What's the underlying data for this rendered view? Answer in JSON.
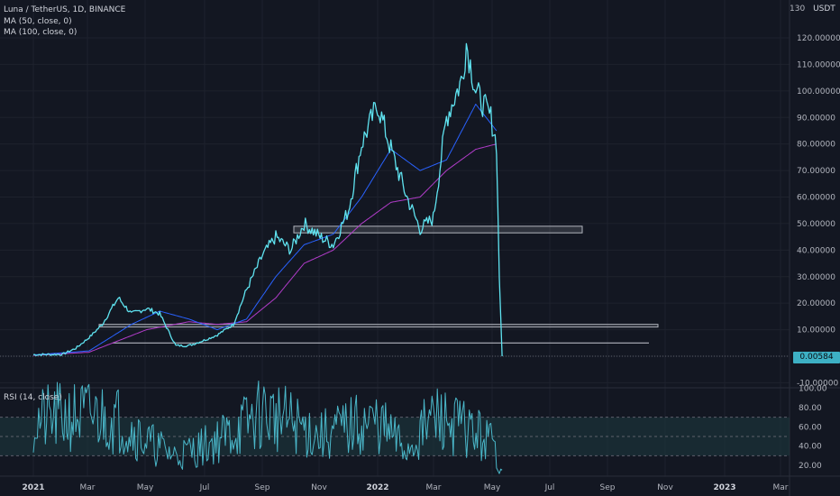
{
  "header": {
    "title": "Luna / TetherUS, 1D, BINANCE",
    "ma50": "MA (50, close, 0)",
    "ma100": "MA (100, close, 0)",
    "currency": "USDT"
  },
  "rsi": {
    "label": "RSI (14, close)",
    "ticks": [
      "100.00",
      "80.00",
      "60.00",
      "40.00",
      "20.00"
    ]
  },
  "price_axis": {
    "ticks": [
      "120.00000",
      "110.00000",
      "100.00000",
      "90.00000",
      "80.00000",
      "70.00000",
      "60.00000",
      "50.00000",
      "40.00000",
      "30.00000",
      "20.00000",
      "10.00000",
      "-10.00000"
    ],
    "top_partial": "130",
    "last_price": "0.00584"
  },
  "time_axis": {
    "labels": [
      "2021",
      "Mar",
      "May",
      "Jul",
      "Sep",
      "Nov",
      "2022",
      "Mar",
      "May",
      "Jul",
      "Sep",
      "Nov",
      "2023",
      "Mar"
    ]
  },
  "colors": {
    "background": "#131722",
    "price_line": "#5fe3f0",
    "ma50": "#2962ff",
    "ma100": "#b13cc9",
    "rsi_line": "#4ab7c9",
    "rsi_band": "#1d3a3f",
    "zone": "#b2b5be"
  },
  "chart_data": [
    {
      "type": "line",
      "title": "Luna / TetherUS, 1D, BINANCE",
      "ylabel": "USDT",
      "ylim": [
        -10,
        130
      ],
      "series": [
        {
          "name": "Luna / TetherUS",
          "x": [
            "2021-01-01",
            "2021-02-01",
            "2021-02-15",
            "2021-03-01",
            "2021-03-15",
            "2021-04-01",
            "2021-04-15",
            "2021-05-01",
            "2021-05-15",
            "2021-06-01",
            "2021-06-15",
            "2021-07-01",
            "2021-07-15",
            "2021-08-01",
            "2021-08-15",
            "2021-09-01",
            "2021-09-15",
            "2021-10-01",
            "2021-10-15",
            "2021-11-01",
            "2021-11-15",
            "2021-12-01",
            "2021-12-15",
            "2022-01-01",
            "2022-01-15",
            "2022-02-01",
            "2022-02-15",
            "2022-03-01",
            "2022-03-15",
            "2022-04-01",
            "2022-04-05",
            "2022-04-15",
            "2022-05-01",
            "2022-05-07",
            "2022-05-10",
            "2022-05-13"
          ],
          "values": [
            0.6,
            0.7,
            3,
            7,
            12,
            22,
            16,
            18,
            16,
            4,
            4,
            6,
            8,
            12,
            25,
            38,
            45,
            40,
            50,
            45,
            42,
            55,
            80,
            95,
            78,
            60,
            48,
            52,
            90,
            105,
            118,
            100,
            90,
            80,
            30,
            0.006
          ]
        },
        {
          "name": "MA (50, close, 0)",
          "x": [
            "2021-01-01",
            "2021-03-01",
            "2021-04-15",
            "2021-05-15",
            "2021-06-15",
            "2021-07-15",
            "2021-08-15",
            "2021-09-15",
            "2021-10-15",
            "2021-11-15",
            "2021-12-15",
            "2022-01-15",
            "2022-02-15",
            "2022-03-15",
            "2022-04-15",
            "2022-05-07"
          ],
          "values": [
            0.5,
            2,
            12,
            17,
            14,
            10,
            14,
            30,
            42,
            46,
            60,
            78,
            70,
            74,
            95,
            85
          ]
        },
        {
          "name": "MA (100, close, 0)",
          "x": [
            "2021-01-01",
            "2021-03-01",
            "2021-05-01",
            "2021-06-15",
            "2021-07-15",
            "2021-08-15",
            "2021-09-15",
            "2021-10-15",
            "2021-11-15",
            "2021-12-15",
            "2022-01-15",
            "2022-02-15",
            "2022-03-15",
            "2022-04-15",
            "2022-05-07"
          ],
          "values": [
            0.3,
            1.5,
            10,
            13,
            12,
            13,
            22,
            35,
            40,
            50,
            58,
            60,
            70,
            78,
            80
          ]
        }
      ],
      "annotations": [
        "support zone 46.5-49",
        "support zone 11-12",
        "line 5"
      ]
    },
    {
      "type": "line",
      "title": "RSI (14, close)",
      "ylim": [
        10,
        100
      ],
      "series": [
        {
          "name": "RSI (14, close)",
          "x": [
            "2021-01-01",
            "2021-02-01",
            "2021-03-01",
            "2021-04-01",
            "2021-05-01",
            "2021-06-01",
            "2021-07-01",
            "2021-08-01",
            "2021-09-01",
            "2021-10-01",
            "2021-11-01",
            "2021-12-01",
            "2022-01-01",
            "2022-02-01",
            "2022-03-01",
            "2022-04-01",
            "2022-05-01",
            "2022-05-13"
          ],
          "values": [
            65,
            70,
            72,
            68,
            45,
            30,
            40,
            55,
            75,
            65,
            50,
            60,
            65,
            35,
            70,
            60,
            45,
            15
          ]
        }
      ]
    }
  ]
}
